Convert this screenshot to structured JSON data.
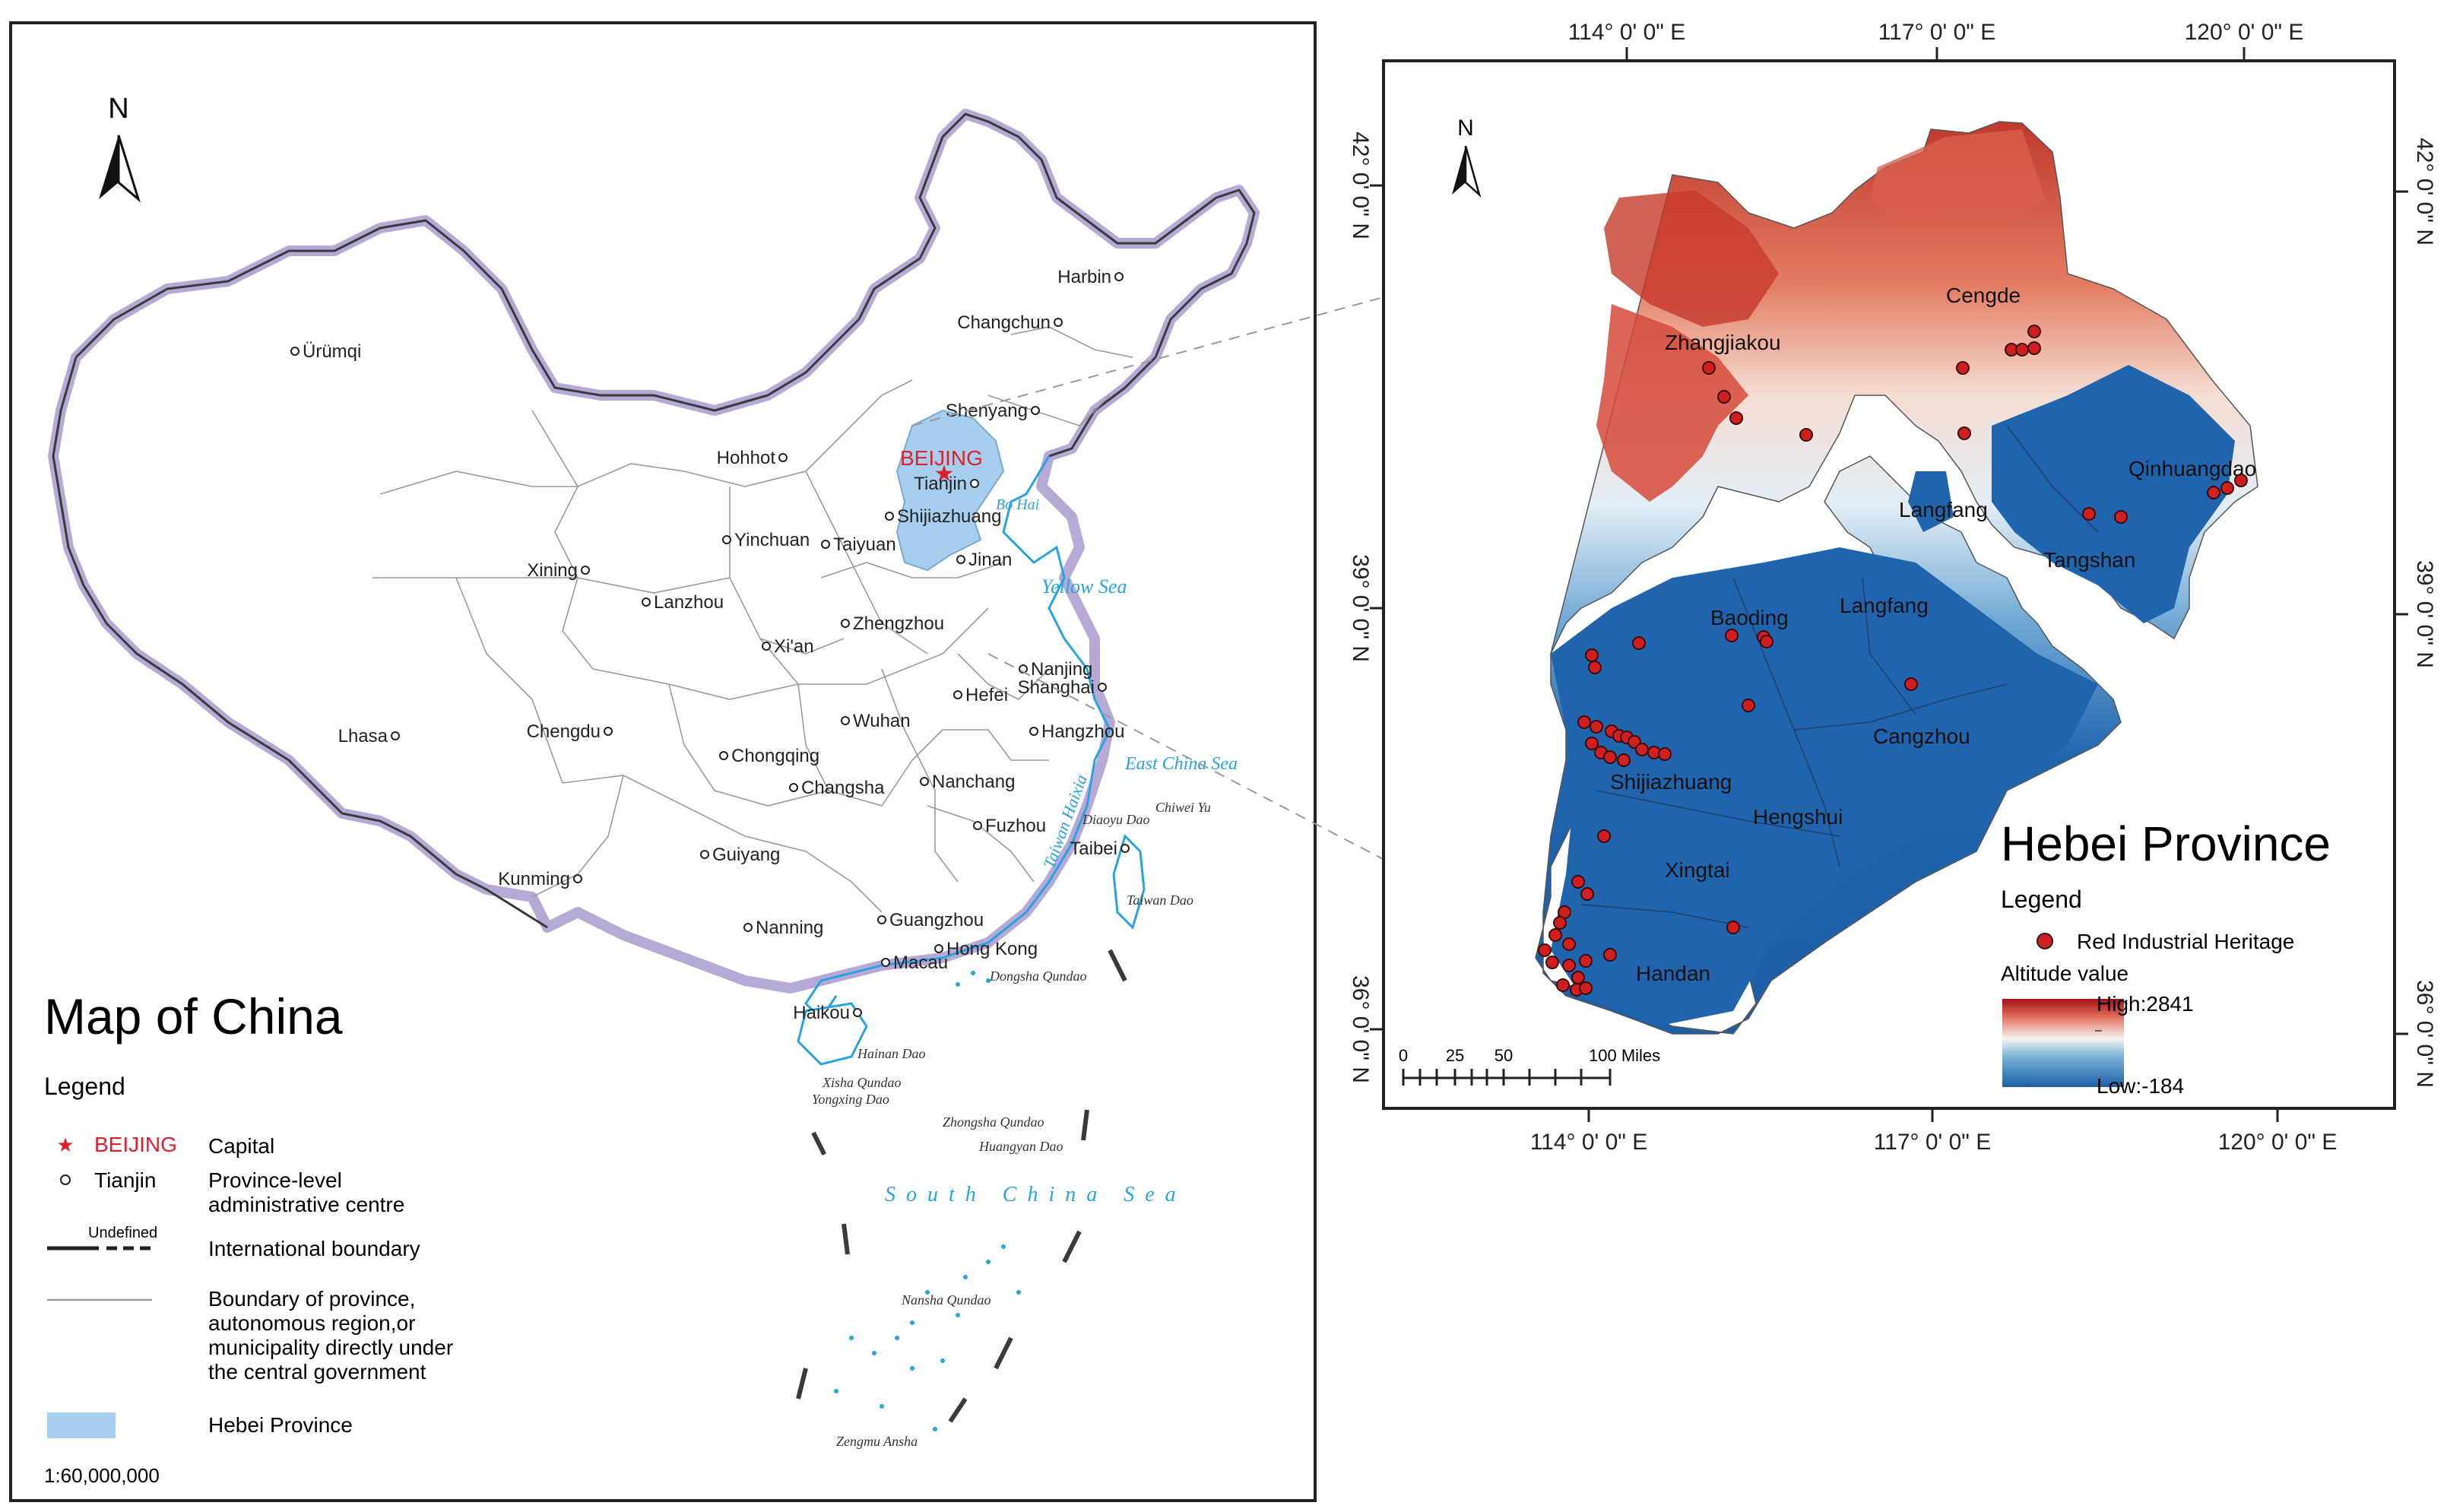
{
  "china_map": {
    "title": "Map of China",
    "north_label": "N",
    "scale": "1:60,000,000",
    "legend": {
      "heading": "Legend",
      "capital_sample": "BEIJING",
      "capital_desc": "Capital",
      "province_sample": "Tianjin",
      "province_desc_lines": [
        "Province-level",
        "administrative centre"
      ],
      "undefined_label": "Undefined",
      "intl_boundary": "International boundary",
      "province_boundary_lines": [
        "Boundary of province,",
        "autonomous region,or",
        "municipality directly under",
        "the central government"
      ],
      "hebei": "Hebei Province"
    },
    "capital": "BEIJING",
    "cities": [
      "Harbin",
      "Changchun",
      "Ürümqi",
      "Shenyang",
      "Hohhot",
      "Tianjin",
      "Shijiazhuang",
      "Yinchuan",
      "Taiyuan",
      "Jinan",
      "Xining",
      "Lanzhou",
      "Xi'an",
      "Zhengzhou",
      "Nanjing",
      "Shanghai",
      "Hefei",
      "Lhasa",
      "Chengdu",
      "Wuhan",
      "Hangzhou",
      "Chongqing",
      "Changsha",
      "Nanchang",
      "Fuzhou",
      "Taibei",
      "Guiyang",
      "Kunming",
      "Nanning",
      "Guangzhou",
      "Hong Kong",
      "Macau",
      "Haikou"
    ],
    "seas": [
      "Bo Hai",
      "Yellow Sea",
      "East China Sea",
      "Taiwan Haixia",
      "South China Sea"
    ],
    "islands": [
      "Diaoyu Dao",
      "Chiwei Yu",
      "Taiwan Dao",
      "Dongsha Qundao",
      "Hainan Dao",
      "Xisha Qundao",
      "Yongxing Dao",
      "Zhongsha Qundao",
      "Huangyan Dao",
      "Nansha Qundao",
      "Zengmu Ansha"
    ]
  },
  "hebei_map": {
    "title": "Hebei Province",
    "north_label": "N",
    "top_ticks": [
      "114° 0' 0\" E",
      "117° 0' 0\" E",
      "120° 0' 0\" E"
    ],
    "bottom_ticks": [
      "114° 0' 0\" E",
      "117° 0' 0\" E",
      "120° 0' 0\" E"
    ],
    "left_ticks": [
      "42° 0' 0\" N",
      "39° 0' 0\" N",
      "36° 0' 0\" N"
    ],
    "right_ticks": [
      "42° 0' 0\" N",
      "39° 0' 0\" N",
      "36° 0' 0\" N"
    ],
    "scale_ticks": [
      "0",
      "25",
      "50",
      "100 Miles"
    ],
    "legend": {
      "heading": "Legend",
      "heritage": "Red Industrial Heritage",
      "altitude_title": "Altitude value",
      "high": "High:2841",
      "low": "Low:-184"
    },
    "cities": [
      "Cengde",
      "Zhangjiakou",
      "Qinhuangdao",
      "Langfang",
      "Tangshan",
      "Baoding",
      "Langfang",
      "Cangzhou",
      "Shijiazhuang",
      "Hengshui",
      "Xingtai",
      "Handan"
    ],
    "colors": {
      "high": "#b2182b",
      "mid": "#f7f7f7",
      "low": "#2166ac",
      "heritage": "#d11f1f",
      "hebei_fill": "#a6cfef",
      "sea": "#29a3e0",
      "capital": "#e0202a"
    }
  }
}
